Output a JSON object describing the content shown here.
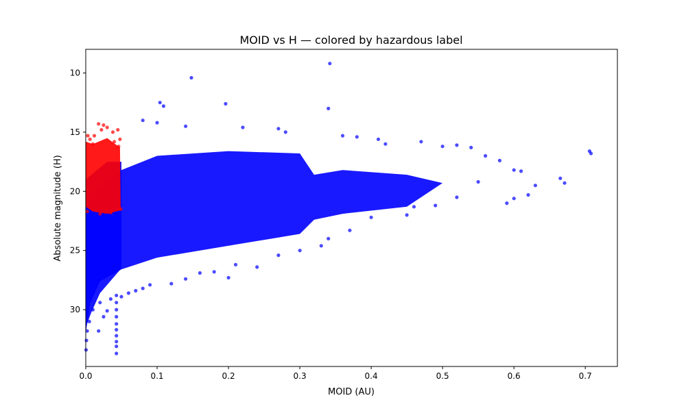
{
  "chart_data": {
    "type": "scatter",
    "title": "MOID vs H — colored by hazardous label",
    "xlabel": "MOID (AU)",
    "ylabel": "Absolute magnitude (H)",
    "xlim": [
      0,
      0.745
    ],
    "ylim": [
      34.8,
      8
    ],
    "y_inverted": true,
    "grid": false,
    "legend": "none",
    "xticks": [
      {
        "value": 0.0,
        "label": "0.0"
      },
      {
        "value": 0.1,
        "label": "0.1"
      },
      {
        "value": 0.2,
        "label": "0.2"
      },
      {
        "value": 0.3,
        "label": "0.3"
      },
      {
        "value": 0.4,
        "label": "0.4"
      },
      {
        "value": 0.5,
        "label": "0.5"
      },
      {
        "value": 0.6,
        "label": "0.6"
      },
      {
        "value": 0.7,
        "label": "0.7"
      }
    ],
    "yticks": [
      {
        "value": 10,
        "label": "10"
      },
      {
        "value": 15,
        "label": "15"
      },
      {
        "value": 20,
        "label": "20"
      },
      {
        "value": 25,
        "label": "25"
      },
      {
        "value": 30,
        "label": "30"
      }
    ],
    "series": [
      {
        "color": "#0000ff",
        "points": [
          [
            0.342,
            9.2
          ],
          [
            0.148,
            10.4
          ],
          [
            0.104,
            12.5
          ],
          [
            0.109,
            12.8
          ],
          [
            0.196,
            12.6
          ],
          [
            0.34,
            13.0
          ],
          [
            0.08,
            14.0
          ],
          [
            0.1,
            14.2
          ],
          [
            0.14,
            14.5
          ],
          [
            0.22,
            14.6
          ],
          [
            0.27,
            14.7
          ],
          [
            0.28,
            15.0
          ],
          [
            0.36,
            15.3
          ],
          [
            0.38,
            15.4
          ],
          [
            0.41,
            15.6
          ],
          [
            0.42,
            16.0
          ],
          [
            0.47,
            15.8
          ],
          [
            0.5,
            16.2
          ],
          [
            0.52,
            16.1
          ],
          [
            0.54,
            16.3
          ],
          [
            0.56,
            17.0
          ],
          [
            0.58,
            17.4
          ],
          [
            0.6,
            18.2
          ],
          [
            0.61,
            18.3
          ],
          [
            0.62,
            20.3
          ],
          [
            0.63,
            19.5
          ],
          [
            0.6,
            20.6
          ],
          [
            0.59,
            21.0
          ],
          [
            0.665,
            18.9
          ],
          [
            0.671,
            19.3
          ],
          [
            0.706,
            16.6
          ],
          [
            0.708,
            16.8
          ],
          [
            0.55,
            19.2
          ],
          [
            0.52,
            20.5
          ],
          [
            0.49,
            21.2
          ],
          [
            0.46,
            21.3
          ],
          [
            0.45,
            22.0
          ],
          [
            0.4,
            22.2
          ],
          [
            0.37,
            23.3
          ],
          [
            0.34,
            24.0
          ],
          [
            0.33,
            24.6
          ],
          [
            0.3,
            25.0
          ],
          [
            0.27,
            25.4
          ],
          [
            0.24,
            26.4
          ],
          [
            0.21,
            26.2
          ],
          [
            0.2,
            27.3
          ],
          [
            0.18,
            26.8
          ],
          [
            0.16,
            26.9
          ],
          [
            0.14,
            27.4
          ],
          [
            0.12,
            27.8
          ],
          [
            0.09,
            27.9
          ],
          [
            0.08,
            28.2
          ],
          [
            0.07,
            28.4
          ],
          [
            0.06,
            28.6
          ],
          [
            0.05,
            28.9
          ],
          [
            0.035,
            29.1
          ],
          [
            0.02,
            29.4
          ],
          [
            0.01,
            30.0
          ],
          [
            0.005,
            31.0
          ],
          [
            0.002,
            31.8
          ],
          [
            0.001,
            32.6
          ],
          [
            0.0005,
            33.4
          ],
          [
            0.018,
            31.8
          ],
          [
            0.043,
            28.8
          ],
          [
            0.043,
            29.4
          ],
          [
            0.043,
            30.0
          ],
          [
            0.043,
            30.6
          ],
          [
            0.043,
            31.2
          ],
          [
            0.043,
            31.7
          ],
          [
            0.043,
            32.2
          ],
          [
            0.043,
            32.7
          ],
          [
            0.043,
            33.1
          ],
          [
            0.043,
            33.7
          ],
          [
            0.025,
            30.6
          ],
          [
            0.03,
            30.1
          ]
        ]
      },
      {
        "color": "#ff0000",
        "points": [
          [
            0.003,
            15.3
          ],
          [
            0.006,
            15.6
          ],
          [
            0.012,
            15.3
          ],
          [
            0.018,
            14.3
          ],
          [
            0.022,
            14.8
          ],
          [
            0.025,
            14.4
          ],
          [
            0.03,
            14.6
          ],
          [
            0.038,
            15.0
          ],
          [
            0.045,
            14.8
          ],
          [
            0.048,
            15.6
          ],
          [
            0.04,
            15.8
          ],
          [
            0.01,
            16.0
          ],
          [
            0.046,
            16.2
          ],
          [
            0.049,
            21.5
          ],
          [
            0.002,
            21.7
          ],
          [
            0.02,
            21.9
          ],
          [
            0.035,
            21.8
          ]
        ]
      }
    ]
  }
}
